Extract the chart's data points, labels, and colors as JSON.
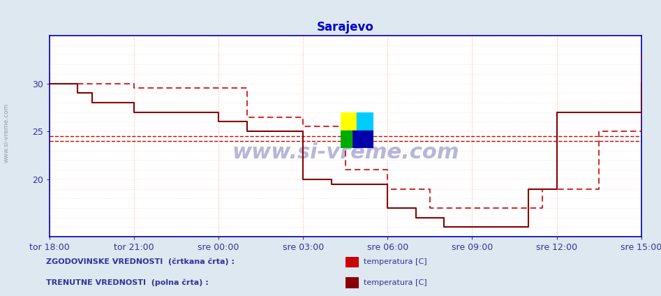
{
  "title": "Sarajevo",
  "title_color": "#0000cc",
  "bg_color": "#dde8f0",
  "plot_bg_color": "#ffffff",
  "x_tick_labels": [
    "tor 18:00",
    "tor 21:00",
    "sre 00:00",
    "sre 03:00",
    "sre 06:00",
    "sre 09:00",
    "sre 12:00",
    "sre 15:00"
  ],
  "x_tick_positions": [
    0,
    36,
    72,
    108,
    144,
    180,
    216,
    252
  ],
  "y_ticks": [
    20,
    25,
    30
  ],
  "ylim": [
    14,
    35
  ],
  "xlim": [
    0,
    252
  ],
  "hline1_y": 24.5,
  "hline2_y": 24.0,
  "historical_color": "#cc0000",
  "current_color": "#880000",
  "watermark_text": "www.si-vreme.com",
  "legend_text1": "ZGODOVINSKE VREDNOSTI  (črtkana črta) :",
  "legend_text2": "TRENUTNE VREDNOSTI  (polna črta) :",
  "legend_label": "temperatura [C]",
  "sidebar_text": "www.si-vreme.com",
  "hist_x": [
    0,
    6,
    12,
    18,
    24,
    30,
    36,
    42,
    48,
    54,
    60,
    66,
    72,
    78,
    84,
    90,
    96,
    102,
    108,
    114,
    120,
    126,
    132,
    138,
    144,
    150,
    156,
    162,
    168,
    174,
    180,
    186,
    192,
    198,
    204,
    210,
    216,
    222,
    228,
    234,
    240,
    246,
    252
  ],
  "hist_y": [
    30,
    30,
    30,
    30,
    30,
    30,
    29.5,
    29.5,
    29.5,
    29.5,
    29.5,
    29.5,
    29.5,
    29.5,
    26.5,
    26.5,
    26.5,
    26.5,
    25.5,
    25.5,
    25.5,
    21,
    21,
    21,
    19,
    19,
    19,
    17,
    17,
    17,
    17,
    17,
    17,
    17,
    17,
    19,
    19,
    19,
    19,
    25,
    25,
    25,
    33
  ],
  "curr_x": [
    0,
    6,
    12,
    18,
    24,
    30,
    36,
    42,
    48,
    54,
    60,
    66,
    72,
    78,
    84,
    90,
    96,
    102,
    108,
    114,
    120,
    126,
    132,
    138,
    144,
    150,
    156,
    162,
    168,
    174,
    180,
    186,
    192,
    198,
    204,
    210,
    216,
    222,
    228,
    234,
    240,
    246,
    252
  ],
  "curr_y": [
    30,
    30,
    29,
    28,
    28,
    28,
    27,
    27,
    27,
    27,
    27,
    27,
    26,
    26,
    25,
    25,
    25,
    25,
    20,
    20,
    19.5,
    19.5,
    19.5,
    19.5,
    17,
    17,
    16,
    16,
    15,
    15,
    15,
    15,
    15,
    15,
    19,
    19,
    27,
    27,
    27,
    27,
    27,
    27,
    30
  ]
}
